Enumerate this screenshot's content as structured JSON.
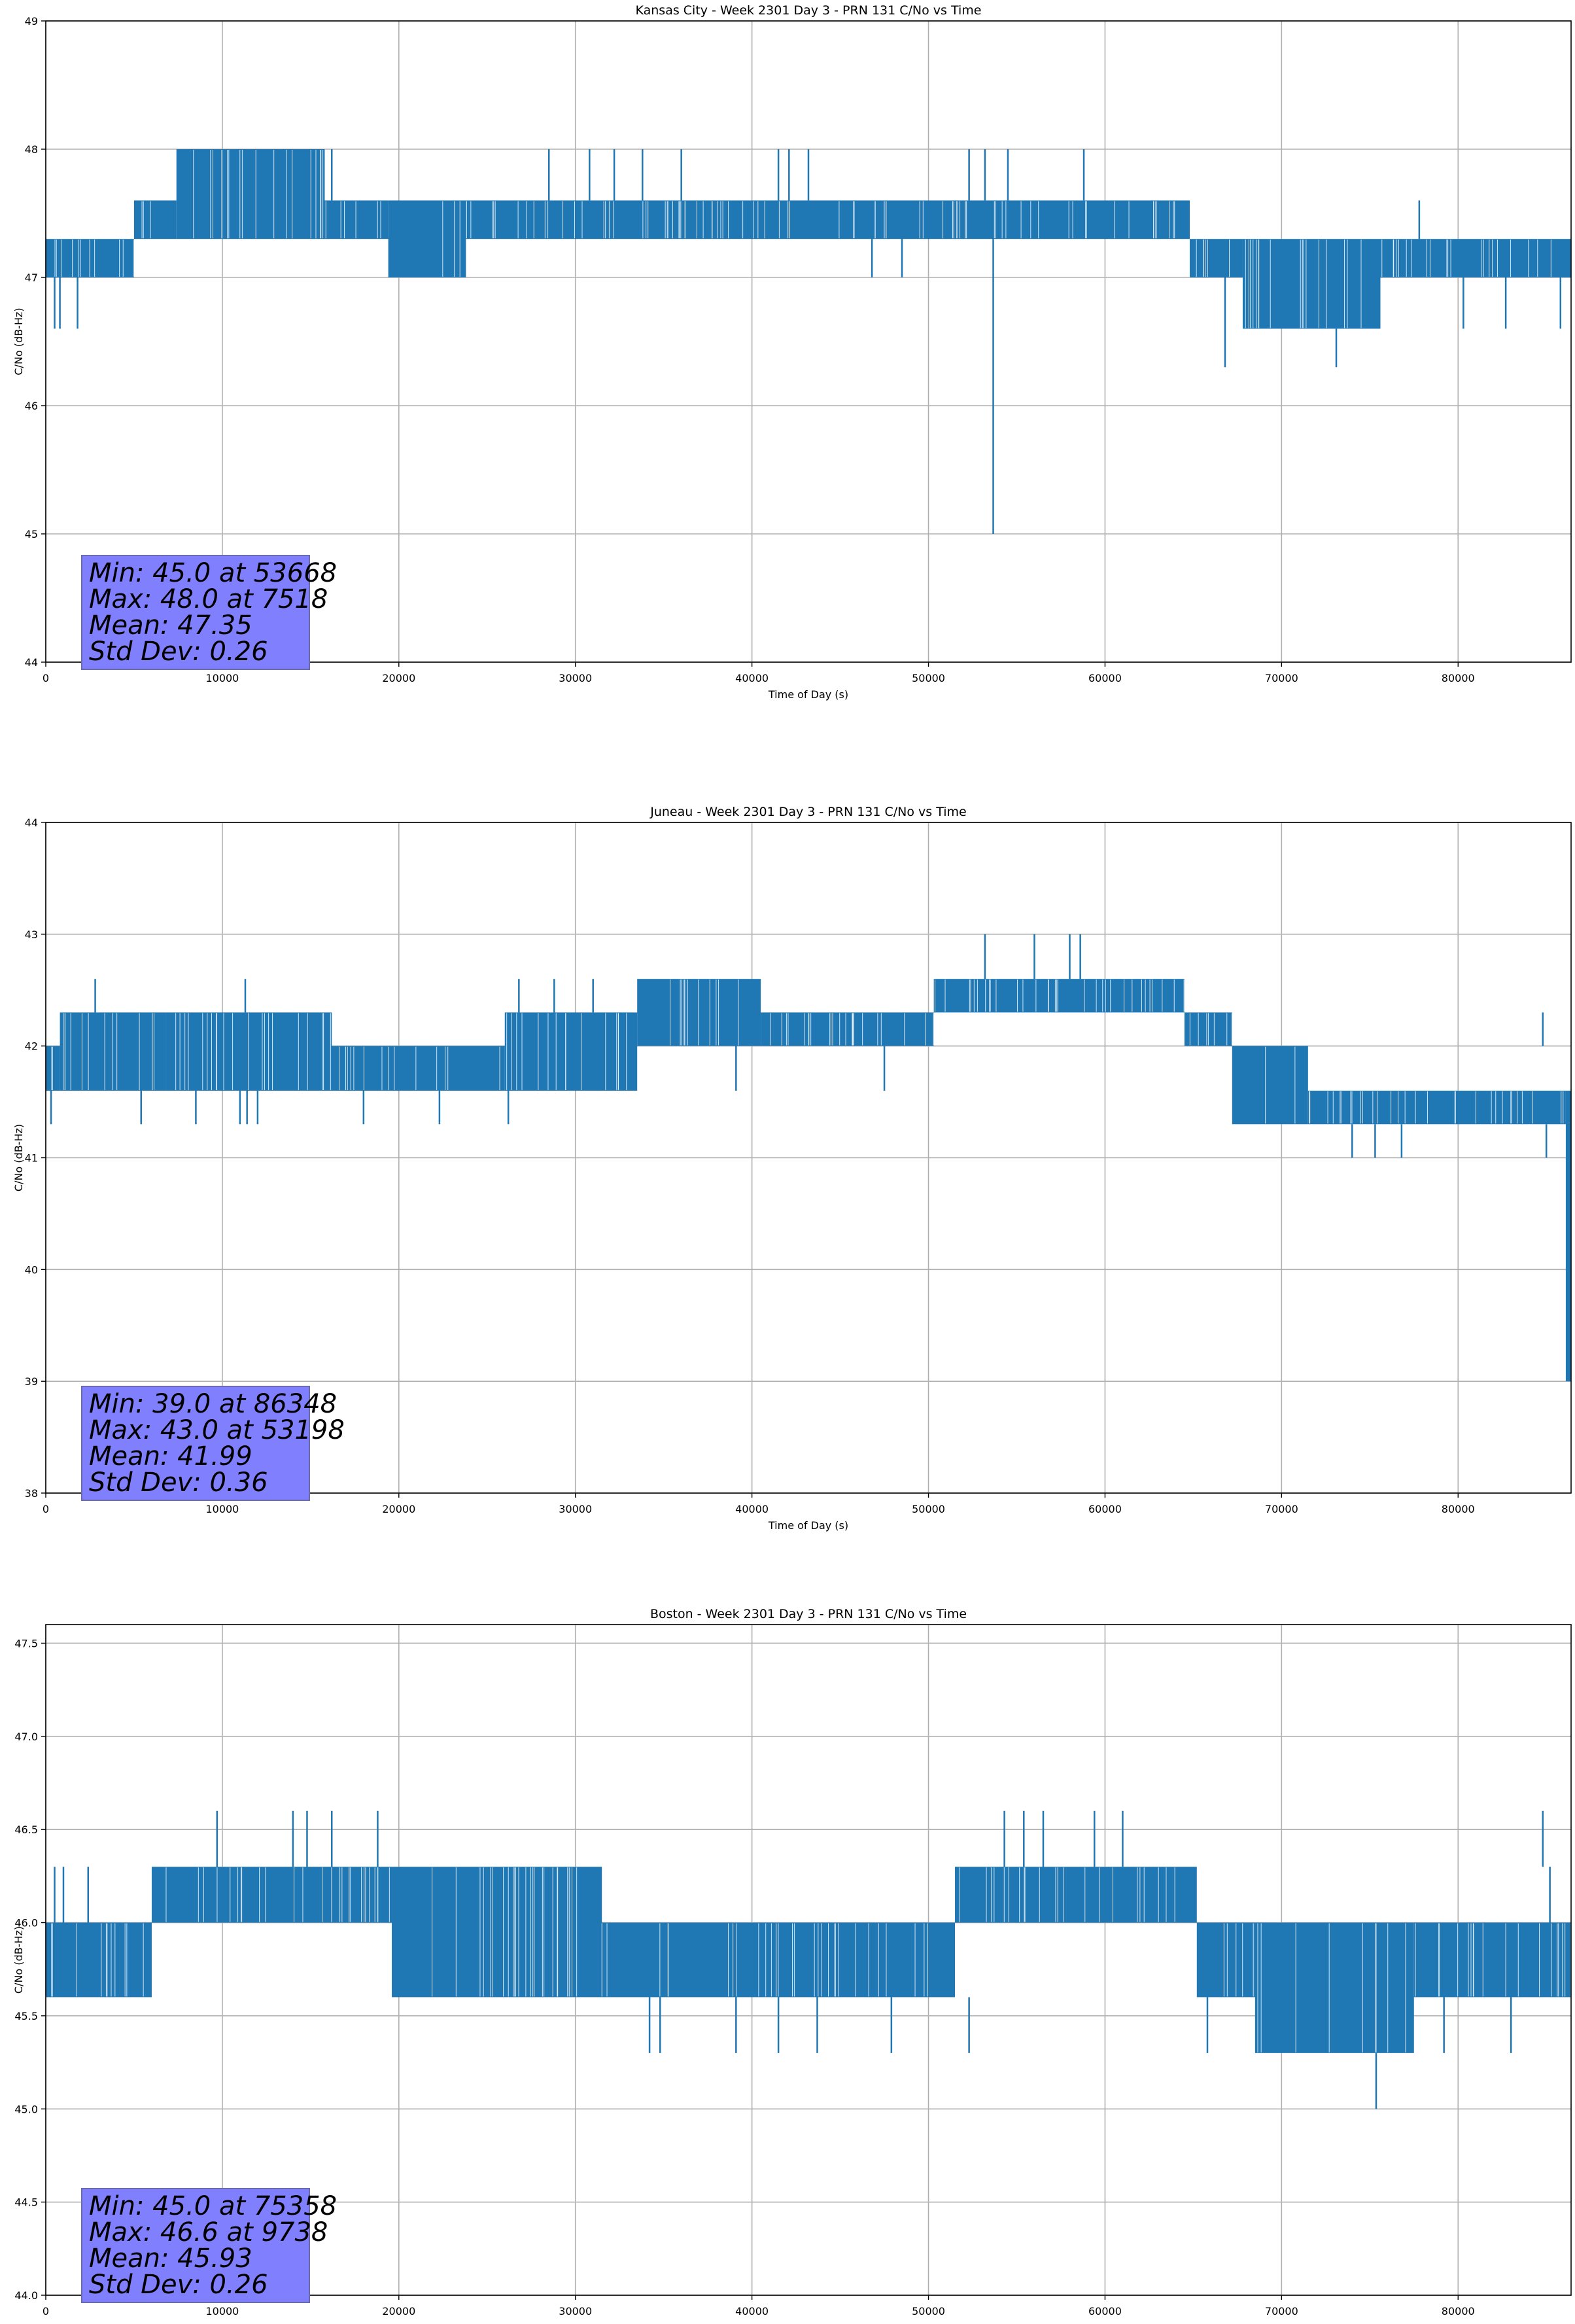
{
  "series_color": "#1f77b4",
  "stats_box_color": "#8080ff",
  "chart_data": [
    {
      "type": "line",
      "title": "Kansas City - Week 2301 Day 3 - PRN 131 C/No vs Time",
      "xlabel": "Time of Day (s)",
      "ylabel": "C/No (dB-Hz)",
      "xlim": [
        0,
        86400
      ],
      "ylim": [
        44,
        49
      ],
      "xticks": [
        "0",
        "10000",
        "20000",
        "30000",
        "40000",
        "50000",
        "60000",
        "70000",
        "80000"
      ],
      "yticks": [
        "44",
        "45",
        "46",
        "47",
        "48",
        "49"
      ],
      "grid": true,
      "segments": [
        {
          "x0": 0,
          "x1": 5000,
          "lo": 47.0,
          "hi": 47.3
        },
        {
          "x0": 5000,
          "x1": 7400,
          "lo": 47.3,
          "hi": 47.6
        },
        {
          "x0": 7400,
          "x1": 15800,
          "lo": 47.3,
          "hi": 48.0
        },
        {
          "x0": 15800,
          "x1": 19400,
          "lo": 47.3,
          "hi": 47.6
        },
        {
          "x0": 19400,
          "x1": 23800,
          "lo": 47.0,
          "hi": 47.6
        },
        {
          "x0": 23800,
          "x1": 64800,
          "lo": 47.3,
          "hi": 47.6
        },
        {
          "x0": 64800,
          "x1": 67800,
          "lo": 47.0,
          "hi": 47.3
        },
        {
          "x0": 67800,
          "x1": 75600,
          "lo": 46.6,
          "hi": 47.3
        },
        {
          "x0": 75600,
          "x1": 86400,
          "lo": 47.0,
          "hi": 47.3
        }
      ],
      "spikes": [
        {
          "x": 500,
          "lo": 46.6,
          "hi": 47.0
        },
        {
          "x": 800,
          "lo": 46.6,
          "hi": 47.0
        },
        {
          "x": 1800,
          "lo": 46.6,
          "hi": 47.0
        },
        {
          "x": 7500,
          "lo": 47.6,
          "hi": 48.0
        },
        {
          "x": 16200,
          "lo": 47.6,
          "hi": 48.0
        },
        {
          "x": 28500,
          "lo": 47.6,
          "hi": 48.0
        },
        {
          "x": 30800,
          "lo": 47.6,
          "hi": 48.0
        },
        {
          "x": 32200,
          "lo": 47.6,
          "hi": 48.0
        },
        {
          "x": 33800,
          "lo": 47.6,
          "hi": 48.0
        },
        {
          "x": 36000,
          "lo": 47.6,
          "hi": 48.0
        },
        {
          "x": 41500,
          "lo": 47.6,
          "hi": 48.0
        },
        {
          "x": 42100,
          "lo": 47.6,
          "hi": 48.0
        },
        {
          "x": 43200,
          "lo": 47.6,
          "hi": 48.0
        },
        {
          "x": 46800,
          "lo": 47.0,
          "hi": 47.3
        },
        {
          "x": 48500,
          "lo": 47.0,
          "hi": 47.3
        },
        {
          "x": 52300,
          "lo": 47.6,
          "hi": 48.0
        },
        {
          "x": 53200,
          "lo": 47.6,
          "hi": 48.0
        },
        {
          "x": 53668,
          "lo": 45.0,
          "hi": 47.3
        },
        {
          "x": 54500,
          "lo": 47.6,
          "hi": 48.0
        },
        {
          "x": 58800,
          "lo": 47.6,
          "hi": 48.0
        },
        {
          "x": 66800,
          "lo": 46.3,
          "hi": 47.0
        },
        {
          "x": 73100,
          "lo": 46.3,
          "hi": 46.6
        },
        {
          "x": 77800,
          "lo": 47.3,
          "hi": 47.6
        },
        {
          "x": 80300,
          "lo": 46.6,
          "hi": 47.0
        },
        {
          "x": 82700,
          "lo": 46.6,
          "hi": 47.0
        },
        {
          "x": 85800,
          "lo": 46.6,
          "hi": 47.0
        }
      ],
      "stats": [
        "Min: 45.0 at 53668",
        "Max: 48.0 at 7518",
        "Mean: 47.35",
        "Std Dev: 0.26"
      ]
    },
    {
      "type": "line",
      "title": "Juneau - Week 2301 Day 3 - PRN 131 C/No vs Time",
      "xlabel": "Time of Day (s)",
      "ylabel": "C/No (dB-Hz)",
      "xlim": [
        0,
        86400
      ],
      "ylim": [
        38,
        44
      ],
      "xticks": [
        "0",
        "10000",
        "20000",
        "30000",
        "40000",
        "50000",
        "60000",
        "70000",
        "80000"
      ],
      "yticks": [
        "38",
        "39",
        "40",
        "41",
        "42",
        "43",
        "44"
      ],
      "grid": true,
      "segments": [
        {
          "x0": 0,
          "x1": 800,
          "lo": 41.6,
          "hi": 42.0
        },
        {
          "x0": 800,
          "x1": 6800,
          "lo": 41.6,
          "hi": 42.3
        },
        {
          "x0": 6800,
          "x1": 16200,
          "lo": 41.6,
          "hi": 42.3
        },
        {
          "x0": 16200,
          "x1": 26000,
          "lo": 41.6,
          "hi": 42.0
        },
        {
          "x0": 26000,
          "x1": 33500,
          "lo": 41.6,
          "hi": 42.3
        },
        {
          "x0": 33500,
          "x1": 40500,
          "lo": 42.0,
          "hi": 42.6
        },
        {
          "x0": 40500,
          "x1": 50300,
          "lo": 42.0,
          "hi": 42.3
        },
        {
          "x0": 50300,
          "x1": 64500,
          "lo": 42.3,
          "hi": 42.6
        },
        {
          "x0": 64500,
          "x1": 67200,
          "lo": 42.0,
          "hi": 42.3
        },
        {
          "x0": 67200,
          "x1": 71500,
          "lo": 41.3,
          "hi": 42.0
        },
        {
          "x0": 71500,
          "x1": 86100,
          "lo": 41.3,
          "hi": 41.6
        },
        {
          "x0": 86100,
          "x1": 86400,
          "lo": 39.0,
          "hi": 41.6
        }
      ],
      "spikes": [
        {
          "x": 300,
          "lo": 41.3,
          "hi": 41.6
        },
        {
          "x": 2800,
          "lo": 42.3,
          "hi": 42.6
        },
        {
          "x": 5400,
          "lo": 41.3,
          "hi": 41.6
        },
        {
          "x": 8500,
          "lo": 41.3,
          "hi": 41.6
        },
        {
          "x": 11300,
          "lo": 42.3,
          "hi": 42.6
        },
        {
          "x": 11000,
          "lo": 41.3,
          "hi": 41.6
        },
        {
          "x": 11400,
          "lo": 41.3,
          "hi": 41.6
        },
        {
          "x": 12000,
          "lo": 41.3,
          "hi": 41.6
        },
        {
          "x": 18000,
          "lo": 41.3,
          "hi": 41.6
        },
        {
          "x": 22300,
          "lo": 41.3,
          "hi": 41.6
        },
        {
          "x": 26200,
          "lo": 41.3,
          "hi": 41.6
        },
        {
          "x": 26800,
          "lo": 42.3,
          "hi": 42.6
        },
        {
          "x": 28800,
          "lo": 42.3,
          "hi": 42.6
        },
        {
          "x": 31000,
          "lo": 42.3,
          "hi": 42.6
        },
        {
          "x": 39100,
          "lo": 41.6,
          "hi": 42.0
        },
        {
          "x": 47500,
          "lo": 41.6,
          "hi": 42.0
        },
        {
          "x": 53200,
          "lo": 42.6,
          "hi": 43.0
        },
        {
          "x": 56000,
          "lo": 42.6,
          "hi": 43.0
        },
        {
          "x": 58000,
          "lo": 42.6,
          "hi": 43.0
        },
        {
          "x": 58600,
          "lo": 42.6,
          "hi": 43.0
        },
        {
          "x": 74000,
          "lo": 41.0,
          "hi": 41.3
        },
        {
          "x": 75300,
          "lo": 41.0,
          "hi": 41.3
        },
        {
          "x": 76800,
          "lo": 41.0,
          "hi": 41.3
        },
        {
          "x": 85000,
          "lo": 41.0,
          "hi": 41.3
        },
        {
          "x": 84800,
          "lo": 42.0,
          "hi": 42.3
        }
      ],
      "stats": [
        "Min: 39.0 at 86348",
        "Max: 43.0 at 53198",
        "Mean: 41.99",
        "Std Dev: 0.36"
      ]
    },
    {
      "type": "line",
      "title": "Boston - Week 2301 Day 3 - PRN 131 C/No vs Time",
      "xlabel": "Time of Day (s)",
      "ylabel": "C/No (dB-Hz)",
      "xlim": [
        0,
        86400
      ],
      "ylim": [
        44.0,
        47.6
      ],
      "xticks": [
        "0",
        "10000",
        "20000",
        "30000",
        "40000",
        "50000",
        "60000",
        "70000",
        "80000"
      ],
      "yticks": [
        "44.0",
        "44.5",
        "45.0",
        "45.5",
        "46.0",
        "46.5",
        "47.0",
        "47.5"
      ],
      "grid": true,
      "segments": [
        {
          "x0": 0,
          "x1": 6000,
          "lo": 45.6,
          "hi": 46.0
        },
        {
          "x0": 6000,
          "x1": 19600,
          "lo": 46.0,
          "hi": 46.3
        },
        {
          "x0": 19600,
          "x1": 31500,
          "lo": 45.6,
          "hi": 46.3
        },
        {
          "x0": 31500,
          "x1": 51500,
          "lo": 45.6,
          "hi": 46.0
        },
        {
          "x0": 51500,
          "x1": 65200,
          "lo": 46.0,
          "hi": 46.3
        },
        {
          "x0": 65200,
          "x1": 68500,
          "lo": 45.6,
          "hi": 46.0
        },
        {
          "x0": 68500,
          "x1": 77500,
          "lo": 45.3,
          "hi": 46.0
        },
        {
          "x0": 77500,
          "x1": 86400,
          "lo": 45.6,
          "hi": 46.0
        }
      ],
      "spikes": [
        {
          "x": 500,
          "lo": 46.0,
          "hi": 46.3
        },
        {
          "x": 1000,
          "lo": 46.0,
          "hi": 46.3
        },
        {
          "x": 2400,
          "lo": 46.0,
          "hi": 46.3
        },
        {
          "x": 9700,
          "lo": 46.3,
          "hi": 46.6
        },
        {
          "x": 14000,
          "lo": 46.3,
          "hi": 46.6
        },
        {
          "x": 14800,
          "lo": 46.3,
          "hi": 46.6
        },
        {
          "x": 16200,
          "lo": 46.3,
          "hi": 46.6
        },
        {
          "x": 18800,
          "lo": 46.3,
          "hi": 46.6
        },
        {
          "x": 34200,
          "lo": 45.3,
          "hi": 45.6
        },
        {
          "x": 34800,
          "lo": 45.3,
          "hi": 45.6
        },
        {
          "x": 39100,
          "lo": 45.3,
          "hi": 45.6
        },
        {
          "x": 41500,
          "lo": 45.3,
          "hi": 45.6
        },
        {
          "x": 43700,
          "lo": 45.3,
          "hi": 45.6
        },
        {
          "x": 47900,
          "lo": 45.3,
          "hi": 45.6
        },
        {
          "x": 52300,
          "lo": 45.3,
          "hi": 45.6
        },
        {
          "x": 54300,
          "lo": 46.3,
          "hi": 46.6
        },
        {
          "x": 55400,
          "lo": 46.3,
          "hi": 46.6
        },
        {
          "x": 56500,
          "lo": 46.3,
          "hi": 46.6
        },
        {
          "x": 59400,
          "lo": 46.3,
          "hi": 46.6
        },
        {
          "x": 61000,
          "lo": 46.3,
          "hi": 46.6
        },
        {
          "x": 65800,
          "lo": 45.3,
          "hi": 45.6
        },
        {
          "x": 75358,
          "lo": 45.0,
          "hi": 45.3
        },
        {
          "x": 79200,
          "lo": 45.3,
          "hi": 45.6
        },
        {
          "x": 83000,
          "lo": 45.3,
          "hi": 45.6
        },
        {
          "x": 84800,
          "lo": 46.3,
          "hi": 46.6
        },
        {
          "x": 85200,
          "lo": 46.0,
          "hi": 46.3
        }
      ],
      "stats": [
        "Min: 45.0 at 75358",
        "Max: 46.6 at 9738",
        "Mean: 45.93",
        "Std Dev: 0.26"
      ]
    }
  ]
}
